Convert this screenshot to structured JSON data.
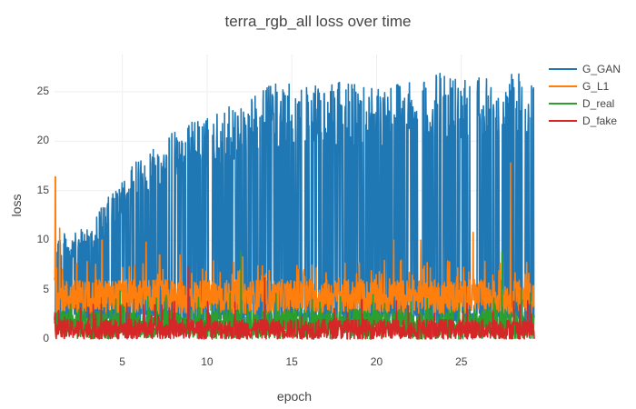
{
  "chart_data": {
    "type": "line",
    "title": "terra_rgb_all loss over time",
    "xlabel": "epoch",
    "ylabel": "loss",
    "xlim": [
      1,
      29.3
    ],
    "ylim": [
      0,
      28.5
    ],
    "x_ticks": [
      5,
      10,
      15,
      20,
      25
    ],
    "y_ticks": [
      0,
      5,
      10,
      15,
      20,
      25
    ],
    "grid": true,
    "legend_position": "top-right-outside",
    "series": [
      {
        "name": "G_GAN",
        "color": "#1f77b4",
        "description": "very noisy per-iteration loss; lower envelope ~1-2, upper envelope rising",
        "upper_envelope": {
          "x": [
            1,
            2,
            3,
            4,
            5,
            6,
            7,
            8,
            9,
            10,
            12,
            14,
            16,
            18,
            20,
            22,
            24,
            26,
            28,
            29.3
          ],
          "y": [
            11,
            10.5,
            11.5,
            14,
            16,
            18.5,
            20,
            21,
            22,
            22.5,
            24,
            26,
            25.5,
            26,
            26,
            26.5,
            27,
            27,
            27,
            26.5
          ]
        },
        "lower_envelope": {
          "x": [
            1,
            29.3
          ],
          "y": [
            1.5,
            1.5
          ]
        },
        "dropouts": [
          {
            "x": 22.6,
            "y_min": 5
          },
          {
            "x": 25.8,
            "y_min": 3
          }
        ]
      },
      {
        "name": "G_L1",
        "color": "#ff7f0e",
        "description": "noisy, typically 2.5-6 with spikes",
        "band": [
          2.5,
          6
        ],
        "spikes": [
          {
            "x": 1.05,
            "y": 16.4
          },
          {
            "x": 1.3,
            "y": 11.2
          },
          {
            "x": 3.8,
            "y": 10
          },
          {
            "x": 6.4,
            "y": 9.8
          },
          {
            "x": 7.2,
            "y": 8.5
          },
          {
            "x": 8.4,
            "y": 8.5
          },
          {
            "x": 12.1,
            "y": 8.3
          },
          {
            "x": 21,
            "y": 10
          },
          {
            "x": 22.6,
            "y": 10
          },
          {
            "x": 25.7,
            "y": 10.8
          },
          {
            "x": 27.9,
            "y": 17.8
          }
        ]
      },
      {
        "name": "D_real",
        "color": "#2ca02c",
        "description": "noisy, mostly 0-3 with spikes",
        "band": [
          0,
          3
        ],
        "spikes": [
          {
            "x": 12.0,
            "y": 8.9
          },
          {
            "x": 27.4,
            "y": 8.8
          }
        ]
      },
      {
        "name": "D_fake",
        "color": "#d62728",
        "description": "noisy, mostly 0-2 with spikes",
        "band": [
          0,
          2
        ],
        "spikes": [
          {
            "x": 8.9,
            "y": 7.3
          },
          {
            "x": 13.4,
            "y": 6.2
          }
        ]
      }
    ]
  },
  "legend": {
    "items": [
      {
        "label": "G_GAN",
        "color": "#1f77b4"
      },
      {
        "label": "G_L1",
        "color": "#ff7f0e"
      },
      {
        "label": "D_real",
        "color": "#2ca02c"
      },
      {
        "label": "D_fake",
        "color": "#d62728"
      }
    ]
  }
}
